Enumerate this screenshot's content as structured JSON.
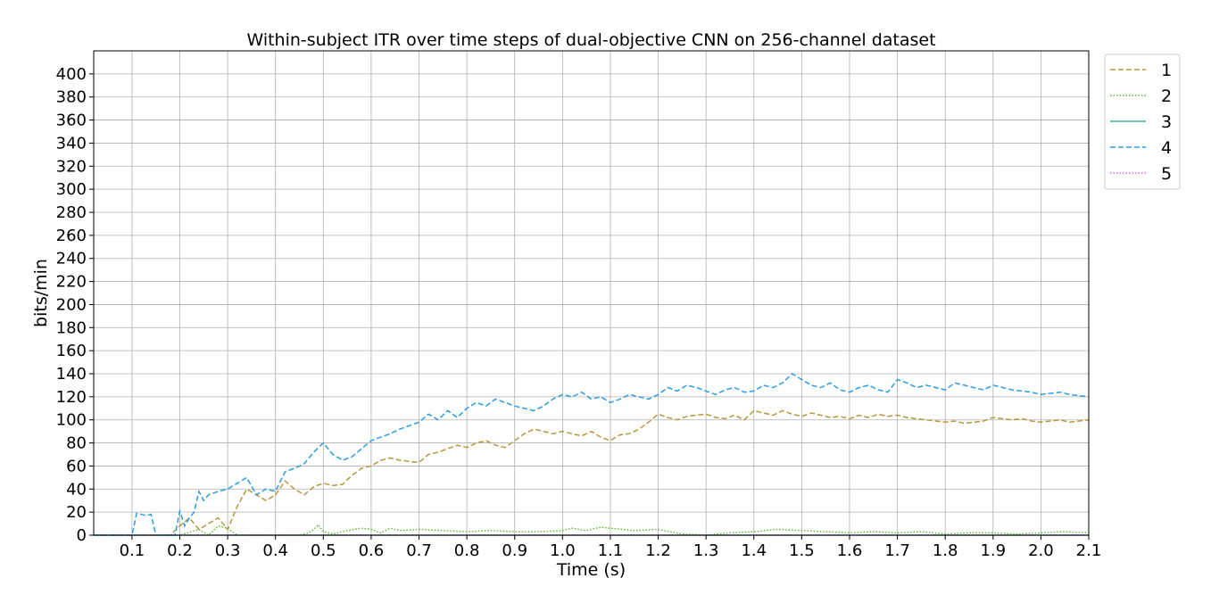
{
  "chart_data": {
    "type": "line",
    "title": "Within-subject ITR over time steps of dual-objective CNN on 256-channel dataset",
    "xlabel": "Time (s)",
    "ylabel": "bits/min",
    "xlim": [
      0.02,
      2.1
    ],
    "ylim": [
      0,
      420
    ],
    "x_ticks": [
      0.1,
      0.2,
      0.3,
      0.4,
      0.5,
      0.6,
      0.7,
      0.8,
      0.9,
      1.0,
      1.1,
      1.2,
      1.3,
      1.4,
      1.5,
      1.6,
      1.7,
      1.8,
      1.9,
      2.0,
      2.1
    ],
    "x_tick_labels": [
      "0.1",
      "0.2",
      "0.3",
      "0.4",
      "0.5",
      "0.6",
      "0.7",
      "0.8",
      "0.9",
      "1.0",
      "1.1",
      "1.2",
      "1.3",
      "1.4",
      "1.5",
      "1.6",
      "1.7",
      "1.8",
      "1.9",
      "2.0",
      "2.1"
    ],
    "y_ticks": [
      0,
      20,
      40,
      60,
      80,
      100,
      120,
      140,
      160,
      180,
      200,
      220,
      240,
      260,
      280,
      300,
      320,
      340,
      360,
      380,
      400
    ],
    "y_tick_labels": [
      "0",
      "20",
      "40",
      "60",
      "80",
      "100",
      "120",
      "140",
      "160",
      "180",
      "200",
      "220",
      "240",
      "260",
      "280",
      "300",
      "320",
      "340",
      "360",
      "380",
      "400"
    ],
    "grid": true,
    "legend_position": "outside-top-right",
    "series": [
      {
        "name": "1",
        "color": "#b8963a",
        "style": "dashed",
        "x": [
          0.02,
          0.18,
          0.2,
          0.22,
          0.24,
          0.26,
          0.28,
          0.3,
          0.32,
          0.34,
          0.36,
          0.38,
          0.4,
          0.42,
          0.44,
          0.46,
          0.48,
          0.5,
          0.52,
          0.54,
          0.56,
          0.58,
          0.6,
          0.62,
          0.64,
          0.66,
          0.68,
          0.7,
          0.72,
          0.74,
          0.76,
          0.78,
          0.8,
          0.82,
          0.84,
          0.86,
          0.88,
          0.9,
          0.92,
          0.94,
          0.96,
          0.98,
          1.0,
          1.02,
          1.04,
          1.06,
          1.08,
          1.1,
          1.12,
          1.14,
          1.16,
          1.18,
          1.2,
          1.22,
          1.24,
          1.26,
          1.28,
          1.3,
          1.32,
          1.34,
          1.36,
          1.38,
          1.4,
          1.42,
          1.44,
          1.46,
          1.48,
          1.5,
          1.52,
          1.54,
          1.56,
          1.58,
          1.6,
          1.62,
          1.64,
          1.66,
          1.68,
          1.7,
          1.72,
          1.74,
          1.76,
          1.78,
          1.8,
          1.82,
          1.84,
          1.86,
          1.88,
          1.9,
          1.92,
          1.94,
          1.96,
          1.98,
          2.0,
          2.02,
          2.04,
          2.06,
          2.08,
          2.1
        ],
        "y": [
          0,
          0,
          8,
          15,
          5,
          10,
          15,
          5,
          25,
          40,
          35,
          30,
          35,
          47,
          40,
          35,
          42,
          45,
          43,
          44,
          52,
          58,
          60,
          65,
          67,
          65,
          64,
          63,
          70,
          72,
          75,
          78,
          76,
          80,
          82,
          78,
          76,
          82,
          88,
          92,
          90,
          88,
          90,
          88,
          86,
          90,
          85,
          82,
          87,
          88,
          92,
          98,
          105,
          102,
          100,
          103,
          104,
          105,
          102,
          101,
          104,
          100,
          108,
          106,
          104,
          108,
          105,
          103,
          106,
          104,
          102,
          103,
          101,
          104,
          102,
          105,
          103,
          104,
          102,
          101,
          100,
          99,
          98,
          99,
          97,
          98,
          99,
          102,
          101,
          100,
          101,
          99,
          98,
          99,
          100,
          98,
          99,
          100
        ]
      },
      {
        "name": "2",
        "color": "#5cb82e",
        "style": "dotted",
        "x": [
          0.02,
          0.2,
          0.24,
          0.26,
          0.28,
          0.3,
          0.32,
          0.34,
          0.45,
          0.47,
          0.48,
          0.49,
          0.5,
          0.52,
          0.55,
          0.58,
          0.6,
          0.62,
          0.64,
          0.66,
          0.7,
          0.75,
          0.8,
          0.85,
          0.9,
          0.95,
          1.0,
          1.02,
          1.05,
          1.08,
          1.1,
          1.15,
          1.2,
          1.25,
          1.3,
          1.35,
          1.4,
          1.45,
          1.5,
          1.55,
          1.6,
          1.65,
          1.7,
          1.75,
          1.8,
          1.85,
          1.9,
          1.95,
          2.0,
          2.05,
          2.1
        ],
        "y": [
          0,
          0,
          5,
          0,
          8,
          6,
          0,
          0,
          0,
          2,
          5,
          9,
          3,
          1,
          4,
          6,
          5,
          2,
          6,
          4,
          5,
          4,
          3,
          4,
          3,
          3,
          4,
          6,
          4,
          7,
          6,
          4,
          5,
          1,
          0,
          2,
          3,
          5,
          4,
          3,
          2,
          3,
          2,
          3,
          1,
          2,
          2,
          1,
          2,
          3,
          2
        ]
      },
      {
        "name": "3",
        "color": "#40b0a0",
        "style": "solid",
        "x": [
          0.02,
          2.1
        ],
        "y": [
          0,
          0
        ]
      },
      {
        "name": "4",
        "color": "#2b9de0",
        "style": "dashed",
        "x": [
          0.02,
          0.1,
          0.11,
          0.12,
          0.13,
          0.14,
          0.15,
          0.19,
          0.2,
          0.21,
          0.22,
          0.23,
          0.24,
          0.25,
          0.26,
          0.28,
          0.3,
          0.32,
          0.34,
          0.36,
          0.38,
          0.4,
          0.42,
          0.44,
          0.46,
          0.48,
          0.5,
          0.52,
          0.54,
          0.56,
          0.58,
          0.6,
          0.62,
          0.64,
          0.66,
          0.68,
          0.7,
          0.72,
          0.74,
          0.76,
          0.78,
          0.8,
          0.82,
          0.84,
          0.86,
          0.88,
          0.9,
          0.92,
          0.94,
          0.96,
          0.98,
          1.0,
          1.02,
          1.04,
          1.06,
          1.08,
          1.1,
          1.12,
          1.14,
          1.16,
          1.18,
          1.2,
          1.22,
          1.24,
          1.26,
          1.28,
          1.3,
          1.32,
          1.34,
          1.36,
          1.38,
          1.4,
          1.42,
          1.44,
          1.46,
          1.48,
          1.5,
          1.52,
          1.54,
          1.56,
          1.58,
          1.6,
          1.62,
          1.64,
          1.66,
          1.68,
          1.7,
          1.72,
          1.74,
          1.76,
          1.78,
          1.8,
          1.82,
          1.84,
          1.86,
          1.88,
          1.9,
          1.92,
          1.94,
          1.96,
          1.98,
          2.0,
          2.02,
          2.04,
          2.06,
          2.08,
          2.1
        ],
        "y": [
          0,
          0,
          19,
          18,
          17,
          18,
          0,
          0,
          21,
          8,
          15,
          20,
          38,
          30,
          35,
          38,
          40,
          45,
          50,
          35,
          40,
          38,
          55,
          58,
          62,
          72,
          80,
          70,
          65,
          68,
          75,
          82,
          85,
          88,
          92,
          95,
          98,
          105,
          100,
          108,
          102,
          110,
          115,
          112,
          118,
          115,
          112,
          110,
          108,
          112,
          118,
          122,
          120,
          124,
          118,
          120,
          115,
          118,
          122,
          120,
          118,
          122,
          128,
          125,
          130,
          128,
          125,
          122,
          126,
          128,
          124,
          125,
          130,
          128,
          132,
          140,
          135,
          130,
          128,
          132,
          126,
          124,
          128,
          130,
          126,
          124,
          135,
          132,
          128,
          130,
          128,
          126,
          132,
          130,
          128,
          126,
          130,
          128,
          126,
          125,
          124,
          122,
          123,
          124,
          122,
          121,
          120
        ]
      },
      {
        "name": "5",
        "color": "#e060e0",
        "style": "dotted",
        "x": [
          0.02,
          2.1
        ],
        "y": [
          0,
          0
        ]
      }
    ]
  }
}
